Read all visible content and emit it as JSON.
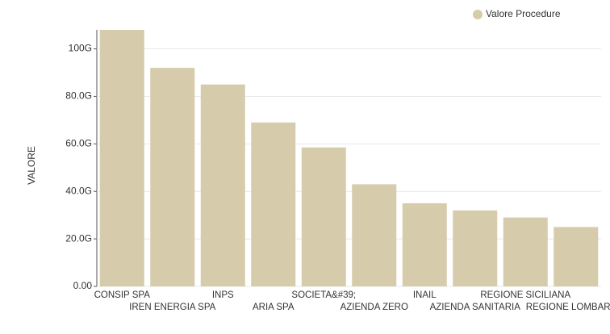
{
  "chart_data": {
    "type": "bar",
    "y_label": "VALORE",
    "legend": "Valore Procedure",
    "legend_position": "top-right",
    "color": "#d6ccab",
    "categories": [
      "CONSIP SPA",
      "IREN ENERGIA SPA",
      "INPS",
      "ARIA SPA",
      "SOCIETA&#39;",
      "AZIENDA ZERO",
      "INAIL",
      "AZIENDA SANITARIA",
      "REGIONE SICILIANA",
      "REGIONE LOMBARDIA"
    ],
    "values": [
      108,
      92,
      85,
      69,
      58.5,
      43,
      35,
      32,
      29,
      25
    ],
    "ylim": [
      0,
      108
    ],
    "yticks": [
      {
        "value": 0,
        "label": "0.00"
      },
      {
        "value": 20,
        "label": "20.0G"
      },
      {
        "value": 40,
        "label": "40.0G"
      },
      {
        "value": 60,
        "label": "60.0G"
      },
      {
        "value": 80,
        "label": "80.0G"
      },
      {
        "value": 100,
        "label": "100G"
      }
    ]
  }
}
